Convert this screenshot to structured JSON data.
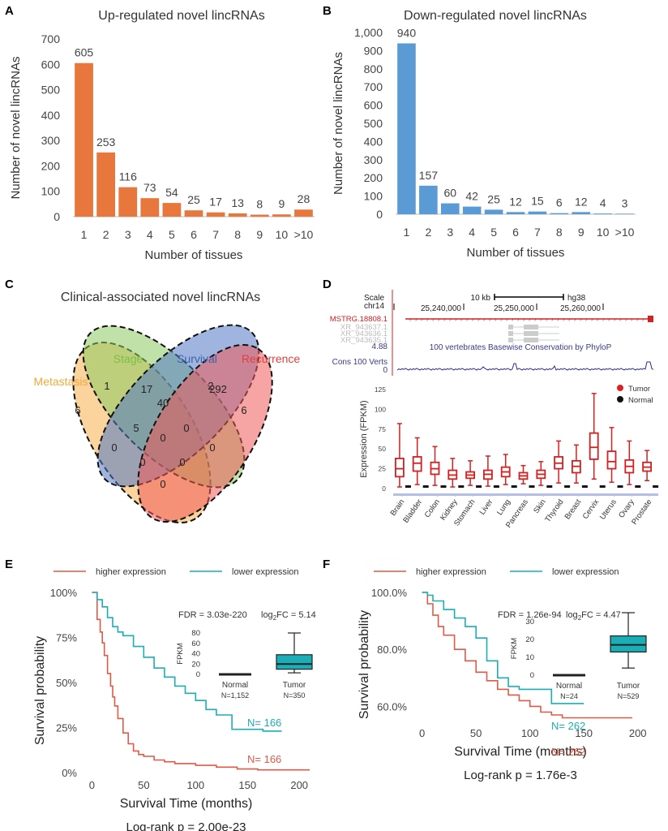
{
  "panel_letters": [
    "A",
    "B",
    "C",
    "D",
    "E",
    "F"
  ],
  "colors": {
    "orange": "#E8773E",
    "blue": "#5B9BD5",
    "red": "#E05A47",
    "teal": "#1BAEB7",
    "darkred": "#D42020"
  },
  "chart_data": [
    {
      "id": "A",
      "type": "bar",
      "title": "Up-regulated novel lincRNAs",
      "xlabel": "Number of tissues",
      "ylabel": "Number of novel lincRNAs",
      "categories": [
        "1",
        "2",
        "3",
        "4",
        "5",
        "6",
        "7",
        "8",
        "9",
        "10",
        ">10"
      ],
      "values": [
        605,
        253,
        116,
        73,
        54,
        25,
        17,
        13,
        8,
        9,
        28
      ],
      "value_labels": [
        "605",
        "253",
        "116",
        "73",
        "54",
        "25",
        "17",
        "13",
        "8",
        "9",
        "28"
      ],
      "ylim": [
        0,
        700
      ],
      "yticks": [
        "0",
        "100",
        "200",
        "300",
        "400",
        "500",
        "600",
        "700"
      ],
      "color": "#E8773E"
    },
    {
      "id": "B",
      "type": "bar",
      "title": "Down-regulated novel lincRNAs",
      "xlabel": "Number of tissues",
      "ylabel": "Number of novel lincRNAs",
      "categories": [
        "1",
        "2",
        "3",
        "4",
        "5",
        "6",
        "7",
        "8",
        "9",
        "10",
        ">10"
      ],
      "values": [
        940,
        157,
        60,
        42,
        25,
        12,
        15,
        6,
        12,
        4,
        3
      ],
      "value_labels": [
        "940",
        "157",
        "60",
        "42",
        "25",
        "12",
        "15",
        "6",
        "12",
        "4",
        "3"
      ],
      "ylim": [
        0,
        1000
      ],
      "yticks": [
        "0",
        "100",
        "200",
        "300",
        "400",
        "500",
        "600",
        "700",
        "800",
        "900",
        "1,000"
      ],
      "color": "#5B9BD5"
    },
    {
      "id": "C",
      "type": "venn",
      "title": "Clinical-associated novel lincRNAs",
      "sets": [
        "Metastasis",
        "Stage",
        "Survival",
        "Recurrence"
      ],
      "region_labels": [
        "6",
        "17",
        "292",
        "6",
        "1",
        "40",
        "2",
        "5",
        "0",
        "0",
        "0",
        "0",
        "0",
        "0",
        "0"
      ]
    },
    {
      "id": "D",
      "type": "box",
      "browser": {
        "scale_label": "Scale",
        "chr": "chr14",
        "scalebar": "10 kb",
        "genome": "hg38",
        "coords": [
          "25,240,000",
          "25,250,000",
          "25,260,000"
        ],
        "tracks": [
          "MSTRG.18808.1",
          "XR_943637.1",
          "XR_943636.1",
          "XR_943635.1"
        ],
        "cons_max": "4.88",
        "cons_label": "100 vertebrates Basewise Conservation by PhyloP",
        "cons_track": "Cons 100 Verts",
        "cons_min": "0"
      },
      "ylabel": "Expression (FPKM)",
      "yticks": [
        "0",
        "25",
        "50",
        "75",
        "100",
        "125"
      ],
      "ylim": [
        0,
        125
      ],
      "legend": [
        "Tumor",
        "Normal"
      ],
      "categories": [
        "Brain",
        "Bladder",
        "Colon",
        "Kidney",
        "Stomach",
        "Liver",
        "Lung",
        "Pancreas",
        "Skin",
        "Thyroid",
        "Breast",
        "Cervix",
        "Uterus",
        "Ovary",
        "Prostate"
      ],
      "tumor": [
        {
          "min": 2,
          "q1": 15,
          "med": 25,
          "q3": 38,
          "max": 82
        },
        {
          "min": 5,
          "q1": 22,
          "med": 32,
          "q3": 40,
          "max": 64
        },
        {
          "min": 4,
          "q1": 18,
          "med": 25,
          "q3": 33,
          "max": 53
        },
        {
          "min": 2,
          "q1": 12,
          "med": 17,
          "q3": 23,
          "max": 38
        },
        {
          "min": 4,
          "q1": 13,
          "med": 17,
          "q3": 21,
          "max": 35
        },
        {
          "min": 3,
          "q1": 12,
          "med": 18,
          "q3": 23,
          "max": 41
        },
        {
          "min": 5,
          "q1": 15,
          "med": 21,
          "q3": 27,
          "max": 43
        },
        {
          "min": 6,
          "q1": 12,
          "med": 16,
          "q3": 20,
          "max": 29
        },
        {
          "min": 4,
          "q1": 13,
          "med": 18,
          "q3": 23,
          "max": 34
        },
        {
          "min": 7,
          "q1": 25,
          "med": 32,
          "q3": 40,
          "max": 60
        },
        {
          "min": 7,
          "q1": 20,
          "med": 28,
          "q3": 35,
          "max": 55
        },
        {
          "min": 12,
          "q1": 37,
          "med": 52,
          "q3": 70,
          "max": 120
        },
        {
          "min": 8,
          "q1": 25,
          "med": 34,
          "q3": 47,
          "max": 77
        },
        {
          "min": 5,
          "q1": 20,
          "med": 28,
          "q3": 36,
          "max": 60
        },
        {
          "min": 10,
          "q1": 22,
          "med": 27,
          "q3": 33,
          "max": 48
        }
      ],
      "normal_level": 2
    },
    {
      "id": "E",
      "type": "line",
      "xlabel": "Survival Time (months)",
      "ylabel": "Survival probability",
      "legend": [
        "higher expression",
        "lower expression"
      ],
      "yticks": [
        "0%",
        "25%",
        "50%",
        "75%",
        "100%"
      ],
      "ylim": [
        0,
        1
      ],
      "xticks": [
        "0",
        "50",
        "100",
        "150",
        "200"
      ],
      "xlim": [
        -5,
        210
      ],
      "series": [
        {
          "name": "higher expression",
          "color": "#E05A47",
          "x": [
            0,
            5,
            8,
            10,
            12,
            15,
            18,
            20,
            22,
            25,
            30,
            35,
            40,
            45,
            50,
            60,
            70,
            80,
            100,
            120,
            140,
            160,
            210
          ],
          "y": [
            1,
            0.85,
            0.78,
            0.72,
            0.65,
            0.55,
            0.48,
            0.42,
            0.37,
            0.3,
            0.22,
            0.16,
            0.12,
            0.1,
            0.09,
            0.07,
            0.06,
            0.05,
            0.04,
            0.03,
            0.02,
            0.015,
            0.015
          ]
        },
        {
          "name": "lower expression",
          "color": "#1BAEB7",
          "x": [
            0,
            5,
            10,
            15,
            20,
            25,
            30,
            40,
            50,
            60,
            70,
            80,
            90,
            100,
            110,
            120,
            135,
            150,
            165,
            183
          ],
          "y": [
            1,
            0.96,
            0.92,
            0.86,
            0.81,
            0.78,
            0.76,
            0.7,
            0.64,
            0.58,
            0.53,
            0.48,
            0.44,
            0.4,
            0.35,
            0.32,
            0.24,
            0.24,
            0.23,
            0.23
          ]
        }
      ],
      "n_labels": [
        "N= 166",
        "N= 166"
      ],
      "stats": {
        "fdr": "FDR = 3.03e-220",
        "fc_prefix": "log",
        "fc_sub": "2",
        "fc_suffix": "FC = 5.14",
        "pvalue": "Log-rank p = 2.00e-23"
      },
      "inset": {
        "ylabel": "FPKM",
        "yticks": [
          "0",
          "20",
          "40",
          "60",
          "80"
        ],
        "ylim": [
          0,
          80
        ],
        "groups": [
          "Normal",
          "Tumor"
        ],
        "ns": [
          "N=1,152",
          "N=350"
        ],
        "tumor_box": {
          "min": 3,
          "q1": 10,
          "med": 20,
          "q3": 38,
          "max": 80
        },
        "normal_level": 0
      }
    },
    {
      "id": "F",
      "type": "line",
      "xlabel": "Survival Time (months)",
      "ylabel": "Survival probability",
      "legend": [
        "higher expression",
        "lower expression"
      ],
      "yticks": [
        "60.0%",
        "80.0%",
        "100.0%"
      ],
      "ylim": [
        0.55,
        1.0
      ],
      "xticks": [
        "0",
        "50",
        "100",
        "150",
        "200"
      ],
      "xlim": [
        -5,
        210
      ],
      "series": [
        {
          "name": "higher expression",
          "color": "#E05A47",
          "x": [
            0,
            5,
            10,
            15,
            20,
            30,
            40,
            50,
            60,
            70,
            80,
            90,
            100,
            110,
            120,
            130,
            150,
            170,
            195
          ],
          "y": [
            1,
            0.96,
            0.92,
            0.88,
            0.85,
            0.8,
            0.76,
            0.72,
            0.69,
            0.66,
            0.64,
            0.62,
            0.6,
            0.58,
            0.57,
            0.56,
            0.56,
            0.56,
            0.56
          ]
        },
        {
          "name": "lower expression",
          "color": "#1BAEB7",
          "x": [
            0,
            5,
            10,
            20,
            30,
            40,
            50,
            60,
            70,
            80,
            90,
            100,
            110,
            120,
            130,
            150
          ],
          "y": [
            1,
            0.99,
            0.97,
            0.94,
            0.91,
            0.88,
            0.84,
            0.76,
            0.7,
            0.67,
            0.66,
            0.66,
            0.66,
            0.61,
            0.61,
            0.61
          ]
        }
      ],
      "n_labels": [
        "N= 262",
        "N= 262"
      ],
      "stats": {
        "fdr": "FDR = 1.26e-94",
        "fc_prefix": "log",
        "fc_sub": "2",
        "fc_suffix": "FC = 4.47",
        "pvalue": "Log-rank p = 1.76e-3"
      },
      "inset": {
        "ylabel": "FPKM",
        "yticks": [
          "0",
          "10",
          "20",
          "30"
        ],
        "ylim": [
          0,
          30
        ],
        "groups": [
          "Normal",
          "Tumor"
        ],
        "ns": [
          "N=24",
          "N=529"
        ],
        "tumor_box": {
          "min": 4,
          "q1": 13,
          "med": 17,
          "q3": 22,
          "max": 35
        },
        "normal_level": 0
      }
    }
  ]
}
